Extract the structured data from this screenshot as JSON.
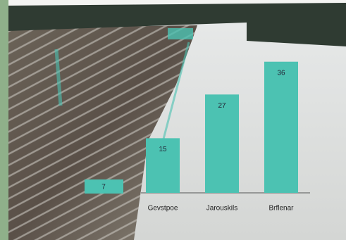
{
  "chart_data": {
    "type": "bar",
    "categories": [
      "Gevstpoe",
      "Jarouskils",
      "Brflenar"
    ],
    "values": [
      15,
      27,
      36
    ],
    "color": "#4cc2b2",
    "ylim": [
      0,
      40
    ],
    "annotation": "7"
  }
}
